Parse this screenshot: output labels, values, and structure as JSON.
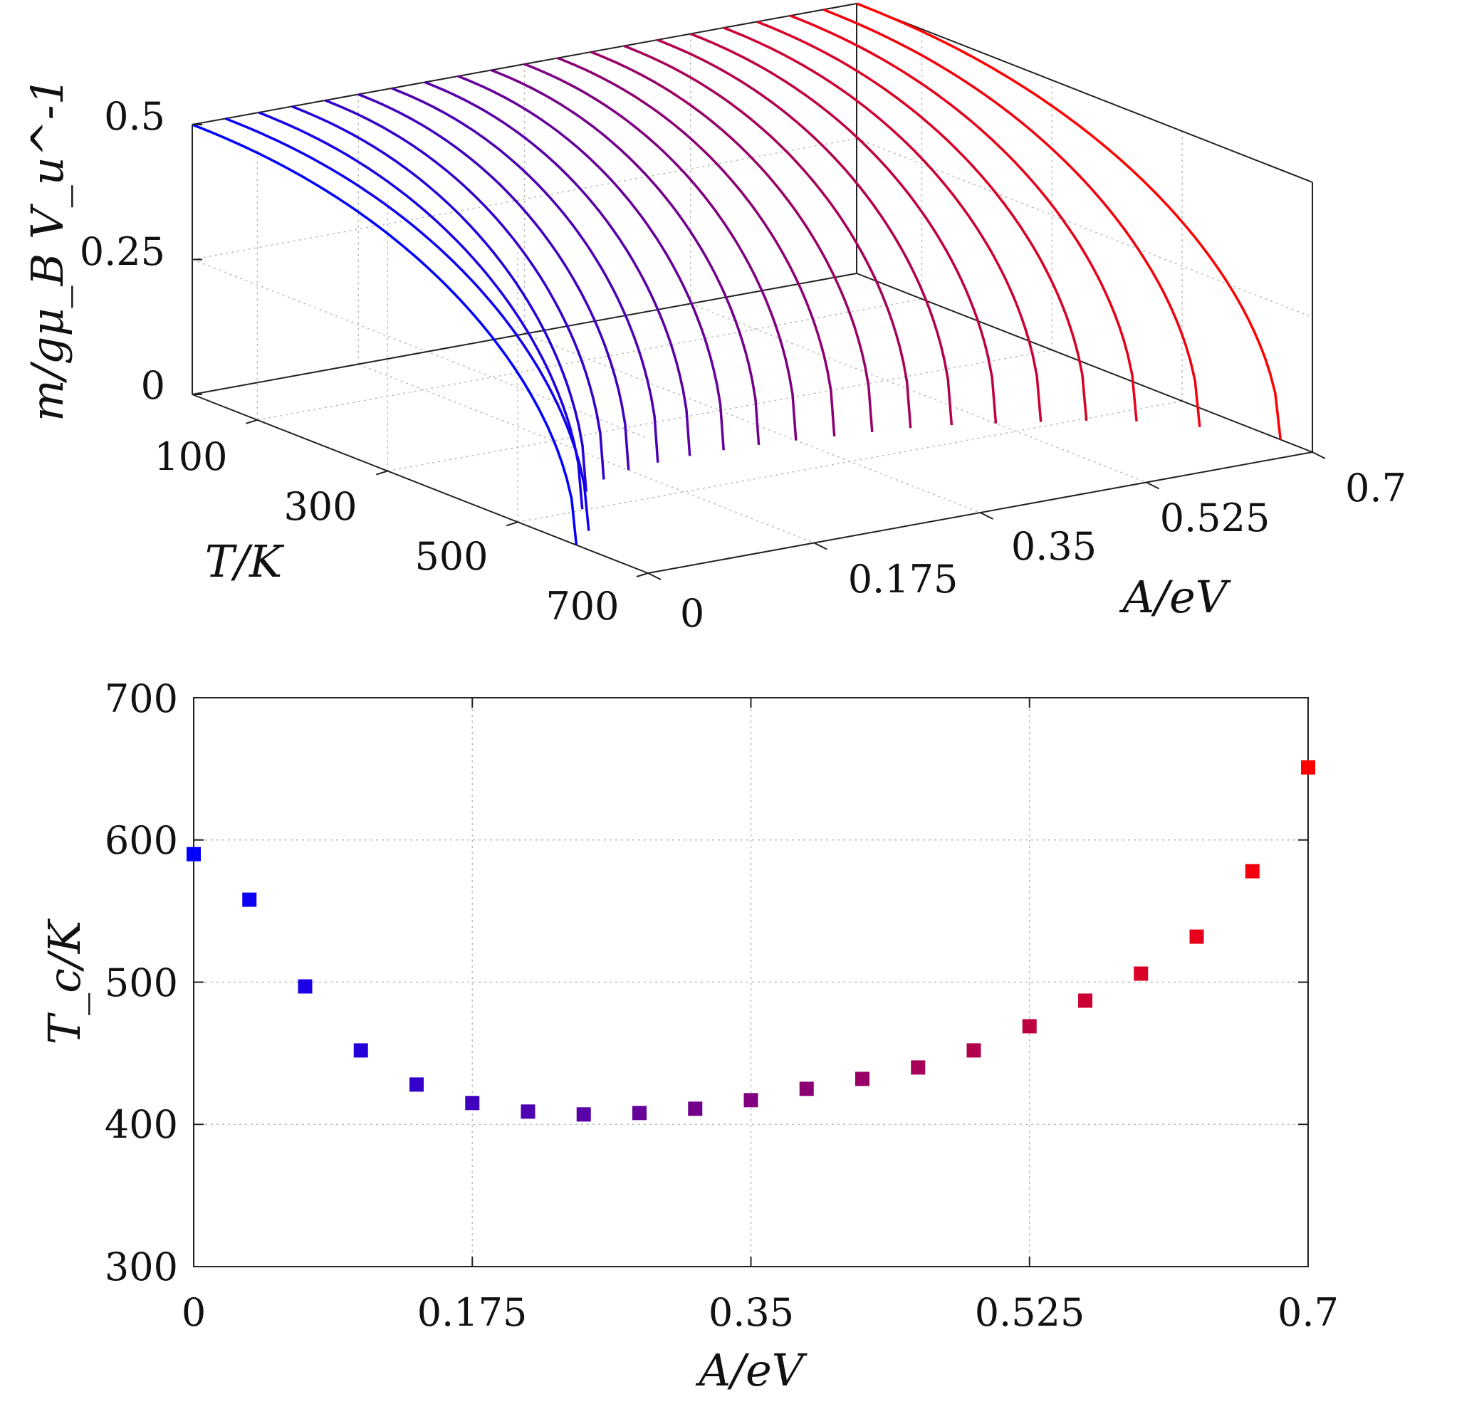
{
  "chart_data": [
    {
      "type": "line",
      "title": "",
      "ylabel": "m/gμ_B V_u^-1",
      "xlabel": "T/K",
      "zlabel": "A/eV",
      "z_ticks": [
        "0",
        "0.25",
        "0.5"
      ],
      "x_ticks": [
        "100",
        "300",
        "500",
        "700"
      ],
      "a_ticks": [
        "0",
        "0.175",
        "0.35",
        "0.525",
        "0.7"
      ],
      "a_range": [
        0,
        0.7
      ],
      "T_range": [
        0,
        700
      ],
      "m_range": [
        0,
        0.5
      ],
      "series_A": [
        0,
        0.035,
        0.07,
        0.105,
        0.14,
        0.175,
        0.21,
        0.245,
        0.28,
        0.315,
        0.35,
        0.385,
        0.42,
        0.455,
        0.49,
        0.525,
        0.56,
        0.595,
        0.63,
        0.665,
        0.7
      ],
      "series_Tc": [
        590,
        558,
        497,
        452,
        428,
        415,
        409,
        407,
        408,
        411,
        417,
        425,
        432,
        440,
        452,
        469,
        487,
        506,
        532,
        578,
        651
      ],
      "m_max": 0.5,
      "color_start": "#0000ff",
      "color_end": "#ff0000",
      "grid": true
    },
    {
      "type": "scatter",
      "title": "",
      "xlabel": "A/eV",
      "ylabel": "T_c/K",
      "x_ticks": [
        "0",
        "0.175",
        "0.35",
        "0.525",
        "0.7"
      ],
      "y_ticks": [
        "300",
        "400",
        "500",
        "600",
        "700"
      ],
      "xlim": [
        0,
        0.7
      ],
      "ylim": [
        300,
        700
      ],
      "x": [
        0,
        0.035,
        0.07,
        0.105,
        0.14,
        0.175,
        0.21,
        0.245,
        0.28,
        0.315,
        0.35,
        0.385,
        0.42,
        0.455,
        0.49,
        0.525,
        0.56,
        0.595,
        0.63,
        0.665,
        0.7
      ],
      "y": [
        590,
        558,
        497,
        452,
        428,
        415,
        409,
        407,
        408,
        411,
        417,
        425,
        432,
        440,
        452,
        469,
        487,
        506,
        532,
        578,
        651
      ],
      "marker": "square",
      "color_start": "#0000ff",
      "color_end": "#ff0000",
      "grid": true
    }
  ]
}
